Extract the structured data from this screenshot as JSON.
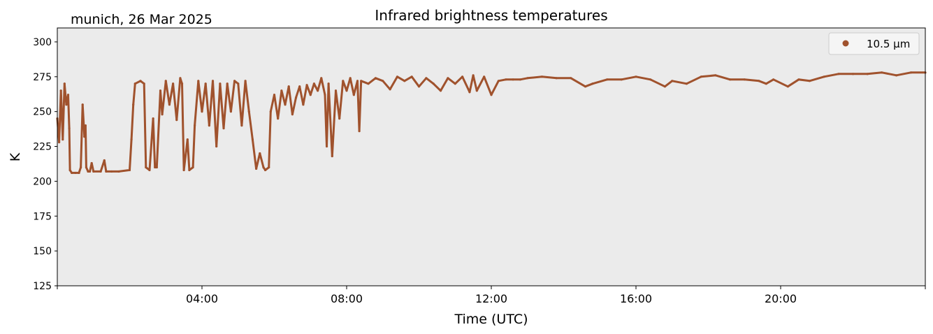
{
  "chart_data": {
    "type": "scatter",
    "title": "Infrared brightness temperatures",
    "subtitle": "munich, 26 Mar 2025",
    "xlabel": "Time (UTC)",
    "ylabel": "K",
    "xlim": [
      0,
      24
    ],
    "ylim": [
      125,
      310
    ],
    "x_unit": "hours UTC",
    "yticks": [
      125,
      150,
      175,
      200,
      225,
      250,
      275,
      300
    ],
    "xticks": [
      {
        "value": 4,
        "label": "04:00"
      },
      {
        "value": 8,
        "label": "08:00"
      },
      {
        "value": 12,
        "label": "12:00"
      },
      {
        "value": 16,
        "label": "16:00"
      },
      {
        "value": 20,
        "label": "20:00"
      }
    ],
    "grid": false,
    "background": "#ebebeb",
    "legend": {
      "placement": "top-right",
      "entries": [
        {
          "label": "10.5 µm",
          "color": "#a0522d"
        }
      ]
    },
    "series": [
      {
        "name": "10.5 µm",
        "color": "#a0522d",
        "points": [
          [
            0.0,
            245
          ],
          [
            0.05,
            228
          ],
          [
            0.1,
            265
          ],
          [
            0.15,
            230
          ],
          [
            0.2,
            270
          ],
          [
            0.25,
            255
          ],
          [
            0.3,
            262
          ],
          [
            0.33,
            238
          ],
          [
            0.35,
            208
          ],
          [
            0.4,
            206
          ],
          [
            0.5,
            206
          ],
          [
            0.6,
            206
          ],
          [
            0.65,
            210
          ],
          [
            0.7,
            255
          ],
          [
            0.75,
            232
          ],
          [
            0.78,
            240
          ],
          [
            0.8,
            210
          ],
          [
            0.85,
            207
          ],
          [
            0.9,
            207
          ],
          [
            0.95,
            213
          ],
          [
            1.0,
            207
          ],
          [
            1.2,
            207
          ],
          [
            1.3,
            215
          ],
          [
            1.35,
            207
          ],
          [
            1.5,
            207
          ],
          [
            1.7,
            207
          ],
          [
            2.0,
            208
          ],
          [
            2.05,
            230
          ],
          [
            2.1,
            255
          ],
          [
            2.15,
            270
          ],
          [
            2.3,
            272
          ],
          [
            2.4,
            270
          ],
          [
            2.45,
            210
          ],
          [
            2.55,
            208
          ],
          [
            2.65,
            245
          ],
          [
            2.7,
            210
          ],
          [
            2.75,
            210
          ],
          [
            2.85,
            265
          ],
          [
            2.9,
            248
          ],
          [
            3.0,
            272
          ],
          [
            3.1,
            255
          ],
          [
            3.2,
            270
          ],
          [
            3.3,
            244
          ],
          [
            3.4,
            274
          ],
          [
            3.45,
            270
          ],
          [
            3.5,
            208
          ],
          [
            3.6,
            230
          ],
          [
            3.65,
            208
          ],
          [
            3.75,
            210
          ],
          [
            3.8,
            240
          ],
          [
            3.9,
            272
          ],
          [
            4.0,
            250
          ],
          [
            4.1,
            270
          ],
          [
            4.2,
            240
          ],
          [
            4.3,
            272
          ],
          [
            4.4,
            225
          ],
          [
            4.5,
            270
          ],
          [
            4.6,
            238
          ],
          [
            4.7,
            270
          ],
          [
            4.8,
            250
          ],
          [
            4.9,
            272
          ],
          [
            5.0,
            270
          ],
          [
            5.1,
            240
          ],
          [
            5.2,
            272
          ],
          [
            5.3,
            250
          ],
          [
            5.4,
            230
          ],
          [
            5.5,
            209
          ],
          [
            5.6,
            220
          ],
          [
            5.7,
            210
          ],
          [
            5.75,
            208
          ],
          [
            5.85,
            210
          ],
          [
            5.9,
            250
          ],
          [
            6.0,
            262
          ],
          [
            6.1,
            245
          ],
          [
            6.2,
            265
          ],
          [
            6.3,
            255
          ],
          [
            6.4,
            268
          ],
          [
            6.5,
            248
          ],
          [
            6.6,
            260
          ],
          [
            6.7,
            268
          ],
          [
            6.8,
            255
          ],
          [
            6.9,
            269
          ],
          [
            7.0,
            262
          ],
          [
            7.1,
            270
          ],
          [
            7.2,
            265
          ],
          [
            7.3,
            274
          ],
          [
            7.4,
            262
          ],
          [
            7.45,
            225
          ],
          [
            7.5,
            270
          ],
          [
            7.6,
            218
          ],
          [
            7.7,
            265
          ],
          [
            7.8,
            245
          ],
          [
            7.9,
            272
          ],
          [
            8.0,
            265
          ],
          [
            8.1,
            274
          ],
          [
            8.2,
            262
          ],
          [
            8.3,
            272
          ],
          [
            8.35,
            236
          ],
          [
            8.4,
            272
          ],
          [
            8.6,
            270
          ],
          [
            8.8,
            274
          ],
          [
            9.0,
            272
          ],
          [
            9.2,
            266
          ],
          [
            9.4,
            275
          ],
          [
            9.6,
            272
          ],
          [
            9.8,
            275
          ],
          [
            10.0,
            268
          ],
          [
            10.2,
            274
          ],
          [
            10.4,
            270
          ],
          [
            10.6,
            265
          ],
          [
            10.8,
            274
          ],
          [
            11.0,
            270
          ],
          [
            11.2,
            275
          ],
          [
            11.4,
            264
          ],
          [
            11.5,
            276
          ],
          [
            11.6,
            265
          ],
          [
            11.8,
            275
          ],
          [
            12.0,
            262
          ],
          [
            12.2,
            272
          ],
          [
            12.4,
            273
          ],
          [
            12.6,
            273
          ],
          [
            12.8,
            273
          ],
          [
            13.0,
            274
          ],
          [
            13.4,
            275
          ],
          [
            13.8,
            274
          ],
          [
            14.2,
            274
          ],
          [
            14.6,
            268
          ],
          [
            14.8,
            270
          ],
          [
            15.2,
            273
          ],
          [
            15.6,
            273
          ],
          [
            16.0,
            275
          ],
          [
            16.4,
            273
          ],
          [
            16.8,
            268
          ],
          [
            17.0,
            272
          ],
          [
            17.4,
            270
          ],
          [
            17.8,
            275
          ],
          [
            18.2,
            276
          ],
          [
            18.6,
            273
          ],
          [
            19.0,
            273
          ],
          [
            19.4,
            272
          ],
          [
            19.6,
            270
          ],
          [
            19.8,
            273
          ],
          [
            20.2,
            268
          ],
          [
            20.5,
            273
          ],
          [
            20.8,
            272
          ],
          [
            21.2,
            275
          ],
          [
            21.6,
            277
          ],
          [
            22.0,
            277
          ],
          [
            22.4,
            277
          ],
          [
            22.8,
            278
          ],
          [
            23.2,
            276
          ],
          [
            23.6,
            278
          ],
          [
            24.0,
            278
          ]
        ]
      }
    ]
  }
}
